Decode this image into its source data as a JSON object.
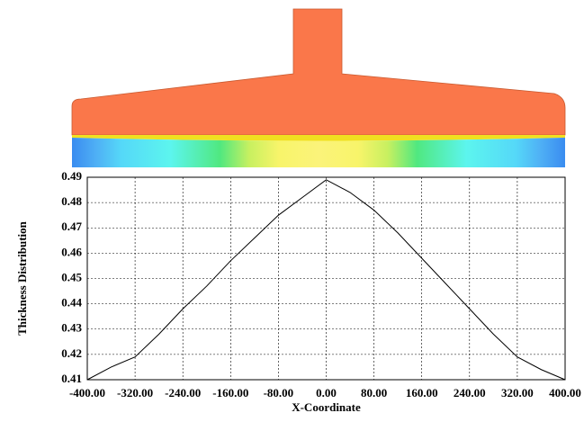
{
  "chart_data": {
    "type": "line",
    "xlabel": "X-Coordinate",
    "ylabel": "Thickness Distribution",
    "x": [
      -400,
      -360,
      -320,
      -280,
      -240,
      -200,
      -160,
      -120,
      -80,
      -40,
      0,
      40,
      80,
      120,
      160,
      200,
      240,
      280,
      320,
      360,
      400
    ],
    "series": [
      {
        "color": "#000000",
        "values": [
          0.41,
          0.415,
          0.419,
          0.428,
          0.438,
          0.447,
          0.457,
          0.466,
          0.475,
          0.482,
          0.489,
          0.484,
          0.477,
          0.468,
          0.458,
          0.448,
          0.438,
          0.428,
          0.419,
          0.414,
          0.41
        ]
      }
    ],
    "xlim": [
      -400,
      400
    ],
    "ylim": [
      0.41,
      0.49
    ],
    "xticks": [
      {
        "value": -400,
        "label": "-400.00"
      },
      {
        "value": -320,
        "label": "-320.00"
      },
      {
        "value": -240,
        "label": "-240.00"
      },
      {
        "value": -160,
        "label": "-160.00"
      },
      {
        "value": -80,
        "label": "-80.00"
      },
      {
        "value": 0,
        "label": "0.00"
      },
      {
        "value": 80,
        "label": "80.00"
      },
      {
        "value": 160,
        "label": "160.00"
      },
      {
        "value": 240,
        "label": "240.00"
      },
      {
        "value": 320,
        "label": "320.00"
      },
      {
        "value": 400,
        "label": "400.00"
      }
    ],
    "yticks": [
      0.41,
      0.42,
      0.43,
      0.44,
      0.45,
      0.46,
      0.47,
      0.48,
      0.49
    ],
    "grid": true
  }
}
